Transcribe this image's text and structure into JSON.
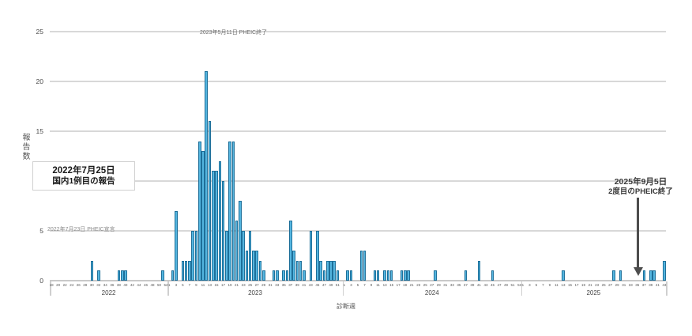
{
  "page": {
    "background": "#ffffff"
  },
  "chart_data": {
    "type": "bar",
    "title": "",
    "ylabel": "報告数",
    "xlabel": "診断週",
    "ylim": [
      0,
      25
    ],
    "y_ticks": [
      0,
      5,
      10,
      15,
      20,
      25
    ],
    "grid": "horizontal",
    "legend": "none",
    "bar_color": "#54b5df",
    "bar_border_color": "#1e6f99",
    "x_unit": "week",
    "years": [
      {
        "label": "2022",
        "start_week": 18,
        "weeks": 35,
        "values": [
          0,
          0,
          0,
          0,
          0,
          0,
          0,
          0,
          0,
          0,
          0,
          0,
          2,
          0,
          1,
          0,
          0,
          0,
          0,
          0,
          1,
          1,
          1,
          0,
          0,
          0,
          0,
          0,
          0,
          0,
          0,
          0,
          0,
          1,
          0
        ],
        "tick_labels": [
          18,
          20,
          22,
          24,
          26,
          28,
          30,
          32,
          34,
          36,
          38,
          40,
          42,
          44,
          46,
          48,
          50,
          52
        ]
      },
      {
        "label": "2023",
        "start_week": 1,
        "weeks": 52,
        "values": [
          0,
          1,
          7,
          0,
          2,
          2,
          2,
          5,
          5,
          14,
          13,
          21,
          16,
          11,
          11,
          12,
          10,
          5,
          14,
          14,
          6,
          8,
          5,
          3,
          5,
          3,
          3,
          2,
          1,
          0,
          0,
          1,
          1,
          0,
          1,
          1,
          6,
          3,
          2,
          2,
          1,
          0,
          5,
          0,
          5,
          2,
          1,
          2,
          2,
          2,
          1,
          0
        ],
        "tick_labels": [
          1,
          3,
          5,
          7,
          9,
          11,
          13,
          15,
          17,
          19,
          21,
          23,
          25,
          27,
          29,
          31,
          33,
          35,
          37,
          39,
          41,
          43,
          45,
          47,
          49,
          51
        ]
      },
      {
        "label": "2024",
        "start_week": 1,
        "weeks": 53,
        "values": [
          0,
          1,
          1,
          0,
          0,
          3,
          3,
          0,
          0,
          1,
          1,
          0,
          1,
          1,
          1,
          0,
          0,
          1,
          1,
          1,
          0,
          0,
          0,
          0,
          0,
          0,
          0,
          1,
          0,
          0,
          0,
          0,
          0,
          0,
          0,
          0,
          1,
          0,
          0,
          0,
          2,
          0,
          0,
          0,
          1,
          0,
          0,
          0,
          0,
          0,
          0,
          0,
          0
        ],
        "tick_labels": [
          1,
          3,
          5,
          7,
          9,
          11,
          13,
          15,
          17,
          19,
          21,
          23,
          25,
          27,
          29,
          31,
          33,
          35,
          37,
          39,
          41,
          43,
          45,
          47,
          49,
          51,
          53
        ]
      },
      {
        "label": "2025",
        "start_week": 1,
        "weeks": 43,
        "values": [
          0,
          0,
          0,
          0,
          0,
          0,
          0,
          0,
          0,
          0,
          0,
          0,
          1,
          0,
          0,
          0,
          0,
          0,
          0,
          0,
          0,
          0,
          0,
          0,
          0,
          0,
          0,
          1,
          0,
          1,
          0,
          0,
          0,
          0,
          0,
          0,
          1,
          0,
          1,
          1,
          0,
          0,
          2
        ],
        "tick_labels": [
          1,
          3,
          5,
          7,
          9,
          11,
          13,
          15,
          17,
          19,
          21,
          23,
          25,
          27,
          29,
          31,
          33,
          35,
          37,
          39,
          41,
          43
        ]
      }
    ],
    "annotations": [
      {
        "id": "first-domestic-case",
        "line1": "2022年7月25日",
        "line2": "国内1例目の報告",
        "style": "white-box"
      },
      {
        "id": "second-pheic-end",
        "line1": "2025年9月5日",
        "line2": "2度目のPHEIC終了",
        "style": "text-with-down-arrow",
        "arrow_points_to": "2025 week 36"
      },
      {
        "id": "pheic-declared",
        "text": "2022年7月23日 PHEIC宣言",
        "style": "faint-small-text"
      },
      {
        "id": "first-pheic-end",
        "text": "2023年5月11日 PHEIC終了",
        "style": "faint-small-text"
      }
    ]
  }
}
